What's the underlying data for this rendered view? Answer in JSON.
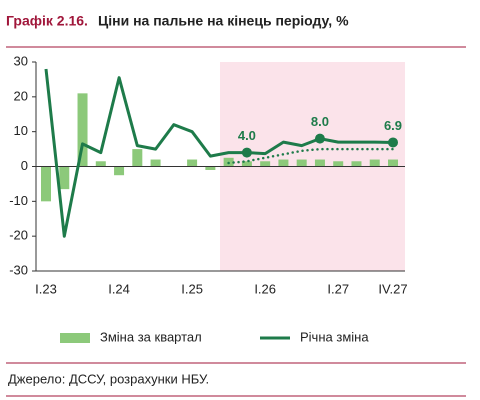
{
  "chart_data": {
    "type": "bar_line",
    "title_label": "Графік 2.16.",
    "title": "Ціни на пальне на кінець періоду, %",
    "source": "Джерело: ДССУ, розрахунки НБУ.",
    "categories": [
      "I.23",
      null,
      null,
      null,
      "I.24",
      null,
      null,
      null,
      "I.25",
      null,
      null,
      null,
      "I.26",
      null,
      null,
      null,
      "I.27",
      null,
      null,
      "IV.27"
    ],
    "series": [
      {
        "name": "Річна зміна",
        "color": "#1e7b4a",
        "kind": "line",
        "values": [
          28,
          -20,
          6.5,
          4,
          25.5,
          6,
          5,
          12,
          10,
          3,
          4,
          4.0,
          3.7,
          7,
          6,
          8.0,
          7,
          7,
          7,
          6.9
        ],
        "value_labels": [
          null,
          null,
          null,
          null,
          null,
          null,
          null,
          null,
          null,
          null,
          null,
          "4.0",
          null,
          null,
          null,
          "8.0",
          null,
          null,
          null,
          "6.9"
        ]
      },
      {
        "name": "Зміна за квартал",
        "color": "#8cc97a",
        "kind": "bar",
        "values": [
          -10,
          -6.5,
          21,
          1.5,
          -2.5,
          5,
          2,
          0,
          2,
          -1,
          2.5,
          1.5,
          1.5,
          2,
          2,
          2,
          1.5,
          1.5,
          2,
          2
        ]
      },
      {
        "color": "#1e7b4a",
        "kind": "dotted",
        "values": [
          null,
          null,
          null,
          null,
          null,
          null,
          null,
          null,
          null,
          null,
          1,
          1.5,
          2.5,
          3.5,
          4.5,
          5,
          5,
          5,
          5,
          5
        ]
      }
    ],
    "ylim": [
      -30,
      30
    ],
    "yticks": [
      -30,
      -20,
      -10,
      0,
      10,
      20,
      30
    ]
  }
}
